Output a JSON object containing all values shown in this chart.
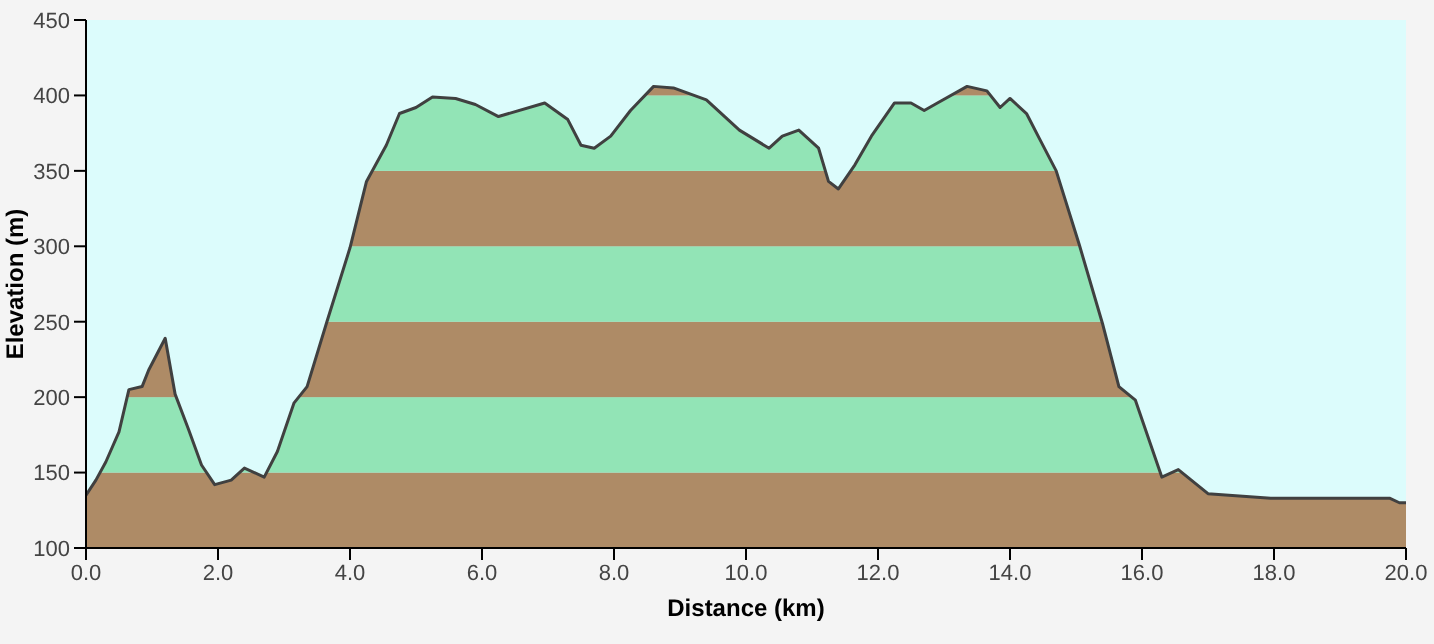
{
  "chart_data": {
    "type": "area",
    "xlabel": "Distance  (km)",
    "ylabel": "Elevation (m)",
    "x": [
      0,
      0.15,
      0.3,
      0.5,
      0.65,
      0.85,
      0.95,
      1.2,
      1.35,
      1.55,
      1.75,
      1.95,
      2.2,
      2.4,
      2.7,
      2.9,
      3.15,
      3.35,
      3.65,
      4.0,
      4.25,
      4.55,
      4.75,
      5.0,
      5.25,
      5.6,
      5.9,
      6.25,
      6.95,
      7.3,
      7.5,
      7.7,
      7.95,
      8.25,
      8.6,
      8.9,
      9.4,
      9.9,
      10.35,
      10.55,
      10.8,
      11.1,
      11.25,
      11.4,
      11.65,
      11.9,
      12.25,
      12.5,
      12.7,
      12.9,
      13.35,
      13.65,
      13.85,
      14.0,
      14.25,
      14.45,
      14.7,
      15.05,
      15.4,
      15.65,
      15.9,
      16.3,
      16.55,
      17.0,
      17.95,
      19.0,
      19.75,
      19.9,
      20.0
    ],
    "series": [
      {
        "color": "#404040",
        "values": [
          135,
          145,
          157,
          177,
          205,
          207,
          218,
          239,
          202,
          179,
          155,
          142,
          145,
          153,
          147,
          164,
          196,
          207,
          250,
          299,
          343,
          367,
          388,
          392,
          399,
          398,
          394,
          386,
          395,
          384,
          367,
          365,
          373,
          390,
          406,
          405,
          397,
          377,
          365,
          373,
          377,
          365,
          343,
          338,
          354,
          373,
          395,
          395,
          390,
          395,
          406,
          403,
          392,
          398,
          388,
          371,
          350,
          301,
          249,
          207,
          198,
          147,
          152,
          136,
          133,
          133,
          133,
          130,
          130
        ]
      }
    ],
    "bands": [
      {
        "axis": "y",
        "from": 100,
        "to": 150,
        "color": "#b8926a"
      },
      {
        "axis": "y",
        "from": 150,
        "to": 200,
        "color": "#9af2c0"
      },
      {
        "axis": "y",
        "from": 200,
        "to": 250,
        "color": "#b8926a"
      },
      {
        "axis": "y",
        "from": 250,
        "to": 300,
        "color": "#9af2c0"
      },
      {
        "axis": "y",
        "from": 300,
        "to": 350,
        "color": "#b8926a"
      },
      {
        "axis": "y",
        "from": 350,
        "to": 400,
        "color": "#9af2c0"
      },
      {
        "axis": "y",
        "from": 400,
        "to": 450,
        "color": "#b8926a"
      }
    ],
    "xlim": [
      0,
      20
    ],
    "ylim": [
      100,
      450
    ],
    "xticks": [
      {
        "value": 0,
        "label": "0.0"
      },
      {
        "value": 2,
        "label": "2.0"
      },
      {
        "value": 4,
        "label": "4.0"
      },
      {
        "value": 6,
        "label": "6.0"
      },
      {
        "value": 8,
        "label": "8.0"
      },
      {
        "value": 10,
        "label": "10.0"
      },
      {
        "value": 12,
        "label": "12.0"
      },
      {
        "value": 14,
        "label": "14.0"
      },
      {
        "value": 16,
        "label": "16.0"
      },
      {
        "value": 18,
        "label": "18.0"
      },
      {
        "value": 20,
        "label": "20.0"
      }
    ],
    "yticks": [
      100,
      150,
      200,
      250,
      300,
      350,
      400,
      450
    ],
    "grid": false,
    "legend": false
  }
}
